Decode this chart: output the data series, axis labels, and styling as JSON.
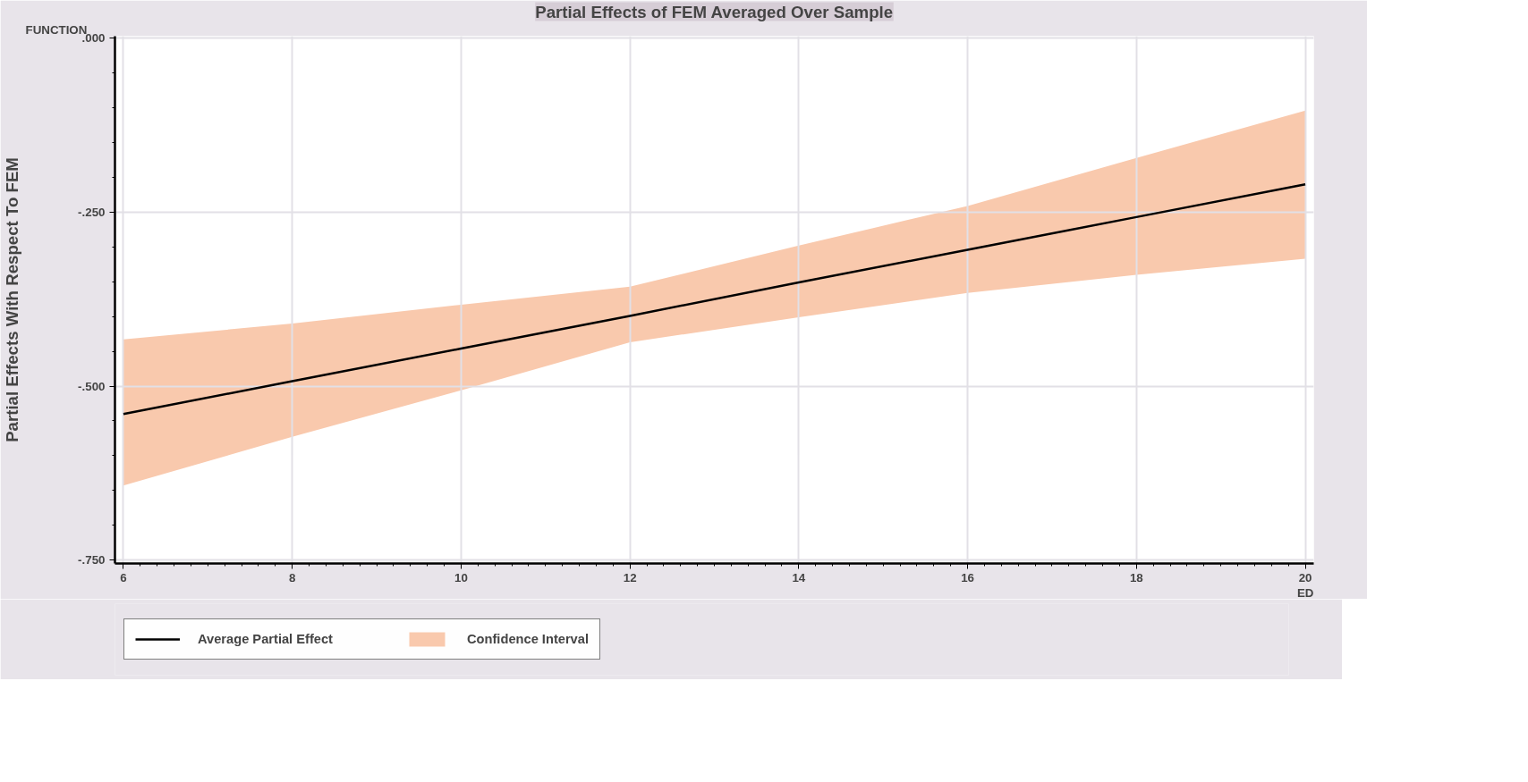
{
  "chart_data": {
    "type": "line",
    "title": "Partial Effects of FEM Averaged Over Sample",
    "xlabel": "ED",
    "ylabel": "Partial Effects With Respect To FEM",
    "annotations": [
      "FUNCTION"
    ],
    "x": [
      6,
      8,
      10,
      12,
      14,
      16,
      18,
      20
    ],
    "series": [
      {
        "name": "Average Partial Effect",
        "color": "#000000",
        "values": [
          -0.54,
          -0.493,
          -0.446,
          -0.399,
          -0.351,
          -0.304,
          -0.257,
          -0.21
        ]
      },
      {
        "name": "Confidence Interval",
        "color": "#f9c9ad",
        "values": [
          null,
          null,
          null,
          null,
          null,
          null,
          null,
          null
        ],
        "lower": [
          -0.643,
          -0.573,
          -0.506,
          -0.437,
          -0.401,
          -0.366,
          -0.34,
          -0.317
        ],
        "upper": [
          -0.433,
          -0.41,
          -0.383,
          -0.357,
          -0.298,
          -0.241,
          -0.172,
          -0.104
        ]
      }
    ],
    "xlim": [
      5.9,
      20.1
    ],
    "ylim": [
      -0.755,
      0.003
    ],
    "xticks": [
      6,
      8,
      10,
      12,
      14,
      16,
      18,
      20
    ],
    "yticks": [
      {
        "value": 0,
        "label": ".000"
      },
      {
        "value": -0.25,
        "label": "-.250"
      },
      {
        "value": -0.5,
        "label": "-.500"
      },
      {
        "value": -0.75,
        "label": "-.750"
      }
    ],
    "grid": true,
    "legend": "bottom"
  }
}
